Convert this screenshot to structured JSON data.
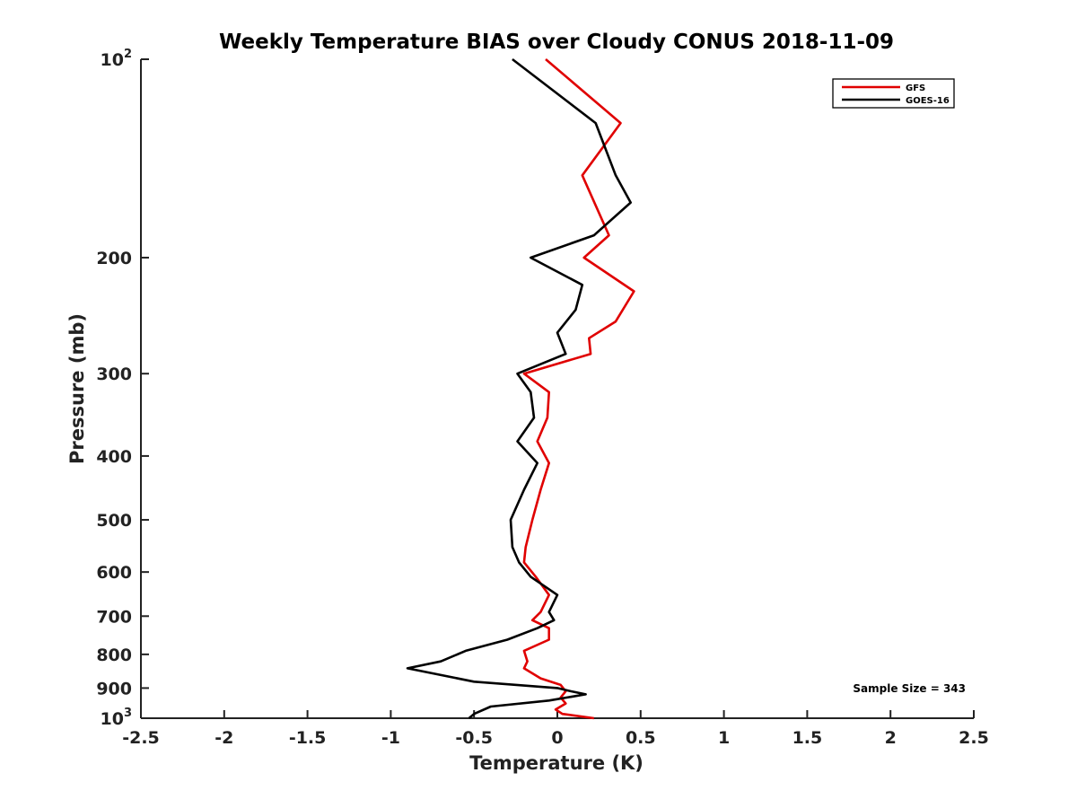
{
  "chart_data": {
    "type": "line",
    "title": "Weekly Temperature BIAS over Cloudy CONUS 2018-11-09",
    "xlabel": "Temperature (K)",
    "ylabel": "Pressure (mb)",
    "xlim": [
      -2.5,
      2.5
    ],
    "ylim": [
      100,
      1000
    ],
    "y_scale": "log",
    "y_reversed": true,
    "grid": false,
    "legend_position": "top-right",
    "x_ticks": [
      -2.5,
      -2,
      -1.5,
      -1,
      -0.5,
      0,
      0.5,
      1,
      1.5,
      2,
      2.5
    ],
    "x_tick_labels": [
      "-2.5",
      "-2",
      "-1.5",
      "-1",
      "-0.5",
      "0",
      "0.5",
      "1",
      "1.5",
      "2",
      "2.5"
    ],
    "y_ticks": [
      100,
      200,
      300,
      400,
      500,
      600,
      700,
      800,
      900,
      1000
    ],
    "y_tick_labels": [
      {
        "base": "10",
        "exp": "2"
      },
      {
        "base": "200",
        "exp": ""
      },
      {
        "base": "300",
        "exp": ""
      },
      {
        "base": "400",
        "exp": ""
      },
      {
        "base": "500",
        "exp": ""
      },
      {
        "base": "600",
        "exp": ""
      },
      {
        "base": "700",
        "exp": ""
      },
      {
        "base": "800",
        "exp": ""
      },
      {
        "base": "900",
        "exp": ""
      },
      {
        "base": "10",
        "exp": "3"
      }
    ],
    "series": [
      {
        "name": "GFS",
        "color": "#e00000",
        "points": [
          [
            -0.07,
            100
          ],
          [
            0.38,
            125
          ],
          [
            0.15,
            150
          ],
          [
            0.31,
            185
          ],
          [
            0.16,
            200
          ],
          [
            0.46,
            225
          ],
          [
            0.35,
            250
          ],
          [
            0.19,
            265
          ],
          [
            0.2,
            280
          ],
          [
            -0.2,
            300
          ],
          [
            -0.05,
            320
          ],
          [
            -0.06,
            350
          ],
          [
            -0.12,
            380
          ],
          [
            -0.05,
            410
          ],
          [
            -0.1,
            450
          ],
          [
            -0.15,
            500
          ],
          [
            -0.19,
            550
          ],
          [
            -0.2,
            580
          ],
          [
            -0.13,
            610
          ],
          [
            -0.05,
            650
          ],
          [
            -0.1,
            690
          ],
          [
            -0.15,
            710
          ],
          [
            -0.05,
            730
          ],
          [
            -0.05,
            760
          ],
          [
            -0.2,
            790
          ],
          [
            -0.18,
            820
          ],
          [
            -0.2,
            840
          ],
          [
            -0.1,
            870
          ],
          [
            0.02,
            890
          ],
          [
            0.05,
            910
          ],
          [
            0.02,
            930
          ],
          [
            0.05,
            950
          ],
          [
            -0.01,
            970
          ],
          [
            0.03,
            985
          ],
          [
            0.22,
            1000
          ]
        ]
      },
      {
        "name": "GOES-16",
        "color": "#000000",
        "points": [
          [
            -0.27,
            100
          ],
          [
            0.23,
            125
          ],
          [
            0.35,
            150
          ],
          [
            0.44,
            165
          ],
          [
            0.22,
            185
          ],
          [
            -0.16,
            200
          ],
          [
            0.15,
            220
          ],
          [
            0.11,
            240
          ],
          [
            0.0,
            260
          ],
          [
            0.05,
            280
          ],
          [
            -0.24,
            300
          ],
          [
            -0.16,
            320
          ],
          [
            -0.14,
            350
          ],
          [
            -0.24,
            380
          ],
          [
            -0.12,
            410
          ],
          [
            -0.2,
            450
          ],
          [
            -0.28,
            500
          ],
          [
            -0.27,
            550
          ],
          [
            -0.23,
            580
          ],
          [
            -0.16,
            610
          ],
          [
            0.0,
            650
          ],
          [
            -0.05,
            690
          ],
          [
            -0.02,
            710
          ],
          [
            -0.12,
            730
          ],
          [
            -0.3,
            760
          ],
          [
            -0.55,
            790
          ],
          [
            -0.7,
            820
          ],
          [
            -0.9,
            840
          ],
          [
            -0.5,
            880
          ],
          [
            0.0,
            900
          ],
          [
            0.08,
            910
          ],
          [
            0.17,
            920
          ],
          [
            -0.05,
            940
          ],
          [
            -0.4,
            960
          ],
          [
            -0.5,
            985
          ],
          [
            -0.53,
            1000
          ]
        ]
      }
    ],
    "annotations": [
      {
        "text": "Sample Size = 343",
        "position": "bottom-right"
      }
    ]
  }
}
